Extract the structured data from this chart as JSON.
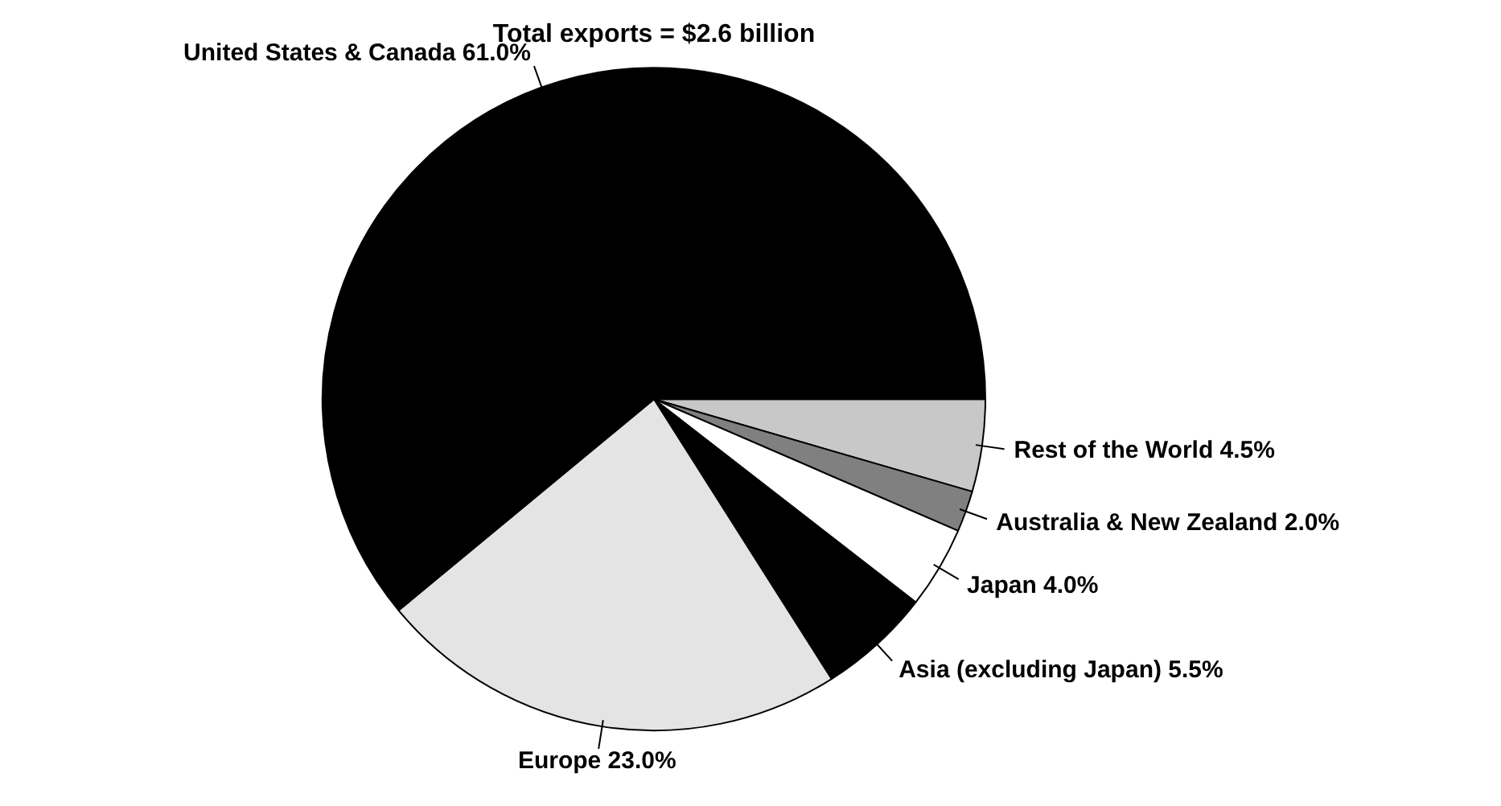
{
  "chart_data": {
    "type": "pie",
    "title": "Total exports = $2.6 billion",
    "categories": [
      "Rest of the World",
      "Australia & New Zealand",
      "Japan",
      "Asia (excluding Japan)",
      "Europe",
      "United States & Canada"
    ],
    "values": [
      4.5,
      2.0,
      4.0,
      5.5,
      23.0,
      61.0
    ],
    "value_labels": [
      "4.5%",
      "2.0%",
      "4.0%",
      "5.5%",
      "23.0%",
      "61.0%"
    ],
    "colors": [
      "#c8c8c8",
      "#808080",
      "#ffffff",
      "#000000",
      "#e4e4e4",
      "#000000"
    ],
    "legend": false
  }
}
